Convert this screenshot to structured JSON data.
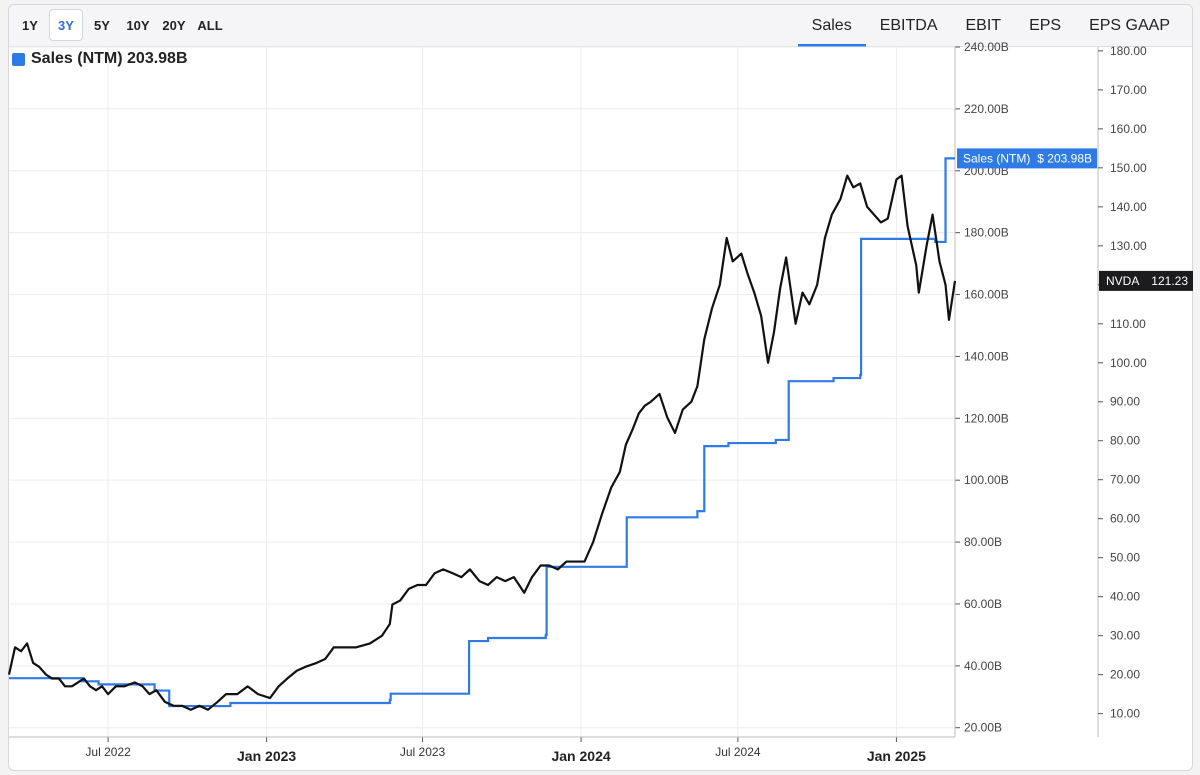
{
  "toolbar": {
    "ranges": [
      "1Y",
      "3Y",
      "5Y",
      "10Y",
      "20Y",
      "ALL"
    ],
    "active_range": "3Y",
    "metrics": [
      "Sales",
      "EBITDA",
      "EBIT",
      "EPS",
      "EPS GAAP"
    ],
    "active_metric": "Sales"
  },
  "legend": {
    "label": "Sales (NTM) 203.98B"
  },
  "tags": {
    "sales_name": "Sales (NTM)",
    "sales_value": "$ 203.98B",
    "price_name": "NVDA",
    "price_value": "121.23"
  },
  "colors": {
    "sales": "#2f7be5",
    "price": "#111111",
    "accent": "#2f7be5"
  },
  "chart_data": {
    "type": "line",
    "x_ticks": [
      {
        "date": "2022-07-01",
        "label": "Jul 2022",
        "major": false
      },
      {
        "date": "2023-01-01",
        "label": "Jan 2023",
        "major": true
      },
      {
        "date": "2023-07-01",
        "label": "Jul 2023",
        "major": false
      },
      {
        "date": "2024-01-01",
        "label": "Jan 2024",
        "major": true
      },
      {
        "date": "2024-07-01",
        "label": "Jul 2024",
        "major": false
      },
      {
        "date": "2025-01-01",
        "label": "Jan 2025",
        "major": true
      }
    ],
    "x_range": [
      "2022-03-08",
      "2025-03-10"
    ],
    "left_axis": {
      "range": [
        17,
        240
      ],
      "ticks": [
        20,
        40,
        60,
        80,
        100,
        120,
        140,
        160,
        180,
        200,
        220,
        240
      ],
      "tick_labels": [
        "20.00B",
        "40.00B",
        "60.00B",
        "80.00B",
        "100.00B",
        "120.00B",
        "140.00B",
        "160.00B",
        "180.00B",
        "200.00B",
        "220.00B",
        "240.00B"
      ]
    },
    "right_axis": {
      "range": [
        4,
        181
      ],
      "ticks": [
        10,
        20,
        30,
        40,
        50,
        60,
        70,
        80,
        90,
        100,
        110,
        120,
        130,
        140,
        150,
        160,
        170,
        180
      ],
      "tick_labels": [
        "10.00",
        "20.00",
        "30.00",
        "40.00",
        "50.00",
        "60.00",
        "70.00",
        "80.00",
        "90.00",
        "100.00",
        "110.00",
        "120.00",
        "130.00",
        "140.00",
        "150.00",
        "160.00",
        "170.00",
        "180.00"
      ]
    },
    "grid": true,
    "series": [
      {
        "axis": "left",
        "step": true,
        "x": [
          "2022-03-08",
          "2022-05-25",
          "2022-06-01",
          "2022-06-20",
          "2022-08-24",
          "2022-09-10",
          "2022-11-16",
          "2022-11-20",
          "2023-02-22",
          "2023-03-01",
          "2023-05-24",
          "2023-05-25",
          "2023-06-15",
          "2023-08-23",
          "2023-08-24",
          "2023-09-15",
          "2023-11-21",
          "2023-11-22",
          "2023-12-20",
          "2024-02-14",
          "2024-02-21",
          "2024-02-23",
          "2024-03-20",
          "2024-05-15",
          "2024-05-22",
          "2024-05-23",
          "2024-06-20",
          "2024-08-14",
          "2024-08-28",
          "2024-08-29",
          "2024-10-20",
          "2024-11-15",
          "2024-11-20",
          "2024-11-21",
          "2025-01-20",
          "2025-02-15",
          "2025-02-26",
          "2025-02-27",
          "2025-03-10"
        ],
        "y": [
          36,
          36,
          35,
          34,
          32,
          27,
          27,
          28,
          28,
          28,
          29,
          31,
          31,
          31,
          48,
          49,
          50,
          72,
          72,
          72,
          72,
          88,
          88,
          90,
          90,
          111,
          112,
          113,
          113,
          132,
          133,
          133,
          134,
          178,
          178,
          177,
          177,
          204,
          204
        ]
      },
      {
        "name": "NVDA",
        "axis": "right",
        "x": [
          "2022-03-08",
          "2022-03-15",
          "2022-03-22",
          "2022-03-29",
          "2022-04-05",
          "2022-04-12",
          "2022-04-20",
          "2022-04-27",
          "2022-05-05",
          "2022-05-12",
          "2022-05-20",
          "2022-05-27",
          "2022-06-03",
          "2022-06-10",
          "2022-06-17",
          "2022-06-24",
          "2022-07-01",
          "2022-07-10",
          "2022-07-20",
          "2022-08-01",
          "2022-08-10",
          "2022-08-18",
          "2022-08-26",
          "2022-09-05",
          "2022-09-15",
          "2022-09-25",
          "2022-10-05",
          "2022-10-15",
          "2022-10-25",
          "2022-11-05",
          "2022-11-15",
          "2022-11-28",
          "2022-12-10",
          "2022-12-22",
          "2023-01-05",
          "2023-01-15",
          "2023-01-25",
          "2023-02-05",
          "2023-02-15",
          "2023-02-28",
          "2023-03-10",
          "2023-03-20",
          "2023-04-01",
          "2023-04-15",
          "2023-05-01",
          "2023-05-15",
          "2023-05-24",
          "2023-05-27",
          "2023-06-05",
          "2023-06-15",
          "2023-06-25",
          "2023-07-05",
          "2023-07-15",
          "2023-07-25",
          "2023-08-05",
          "2023-08-15",
          "2023-08-25",
          "2023-09-05",
          "2023-09-15",
          "2023-09-25",
          "2023-10-05",
          "2023-10-15",
          "2023-10-27",
          "2023-11-05",
          "2023-11-15",
          "2023-11-25",
          "2023-12-05",
          "2023-12-15",
          "2023-12-25",
          "2024-01-05",
          "2024-01-15",
          "2024-01-25",
          "2024-02-05",
          "2024-02-15",
          "2024-02-22",
          "2024-03-01",
          "2024-03-08",
          "2024-03-15",
          "2024-03-22",
          "2024-04-01",
          "2024-04-10",
          "2024-04-19",
          "2024-04-28",
          "2024-05-08",
          "2024-05-15",
          "2024-05-23",
          "2024-06-01",
          "2024-06-10",
          "2024-06-18",
          "2024-06-25",
          "2024-07-05",
          "2024-07-12",
          "2024-07-20",
          "2024-07-28",
          "2024-08-05",
          "2024-08-12",
          "2024-08-19",
          "2024-08-26",
          "2024-09-06",
          "2024-09-14",
          "2024-09-22",
          "2024-10-01",
          "2024-10-10",
          "2024-10-18",
          "2024-10-28",
          "2024-11-05",
          "2024-11-12",
          "2024-11-20",
          "2024-11-28",
          "2024-12-06",
          "2024-12-14",
          "2024-12-22",
          "2025-01-01",
          "2025-01-07",
          "2025-01-14",
          "2025-01-24",
          "2025-01-27",
          "2025-02-05",
          "2025-02-12",
          "2025-02-20",
          "2025-02-27",
          "2025-03-03",
          "2025-03-10"
        ],
        "y": [
          20,
          27,
          26,
          28,
          23,
          22,
          20,
          19,
          19,
          17,
          17,
          18,
          19,
          17,
          16,
          17,
          15,
          17,
          17,
          18,
          17,
          15,
          16,
          13,
          12,
          12,
          11,
          12,
          11,
          13,
          15,
          15,
          17,
          15,
          14,
          17,
          19,
          21,
          22,
          23,
          24,
          27,
          27,
          27,
          28,
          30,
          33,
          38,
          39,
          42,
          43,
          43,
          46,
          47,
          46,
          45,
          47,
          44,
          43,
          45,
          44,
          45,
          41,
          45,
          48,
          48,
          47,
          49,
          49,
          49,
          54,
          61,
          68,
          72,
          79,
          83,
          87,
          89,
          90,
          92,
          86,
          82,
          88,
          90,
          94,
          106,
          114,
          120,
          132,
          126,
          128,
          123,
          118,
          112,
          100,
          108,
          119,
          127,
          110,
          118,
          115,
          120,
          132,
          138,
          142,
          148,
          145,
          146,
          140,
          138,
          136,
          137,
          147,
          148,
          135,
          125,
          118,
          130,
          138,
          126,
          120,
          111,
          121
        ]
      }
    ]
  }
}
